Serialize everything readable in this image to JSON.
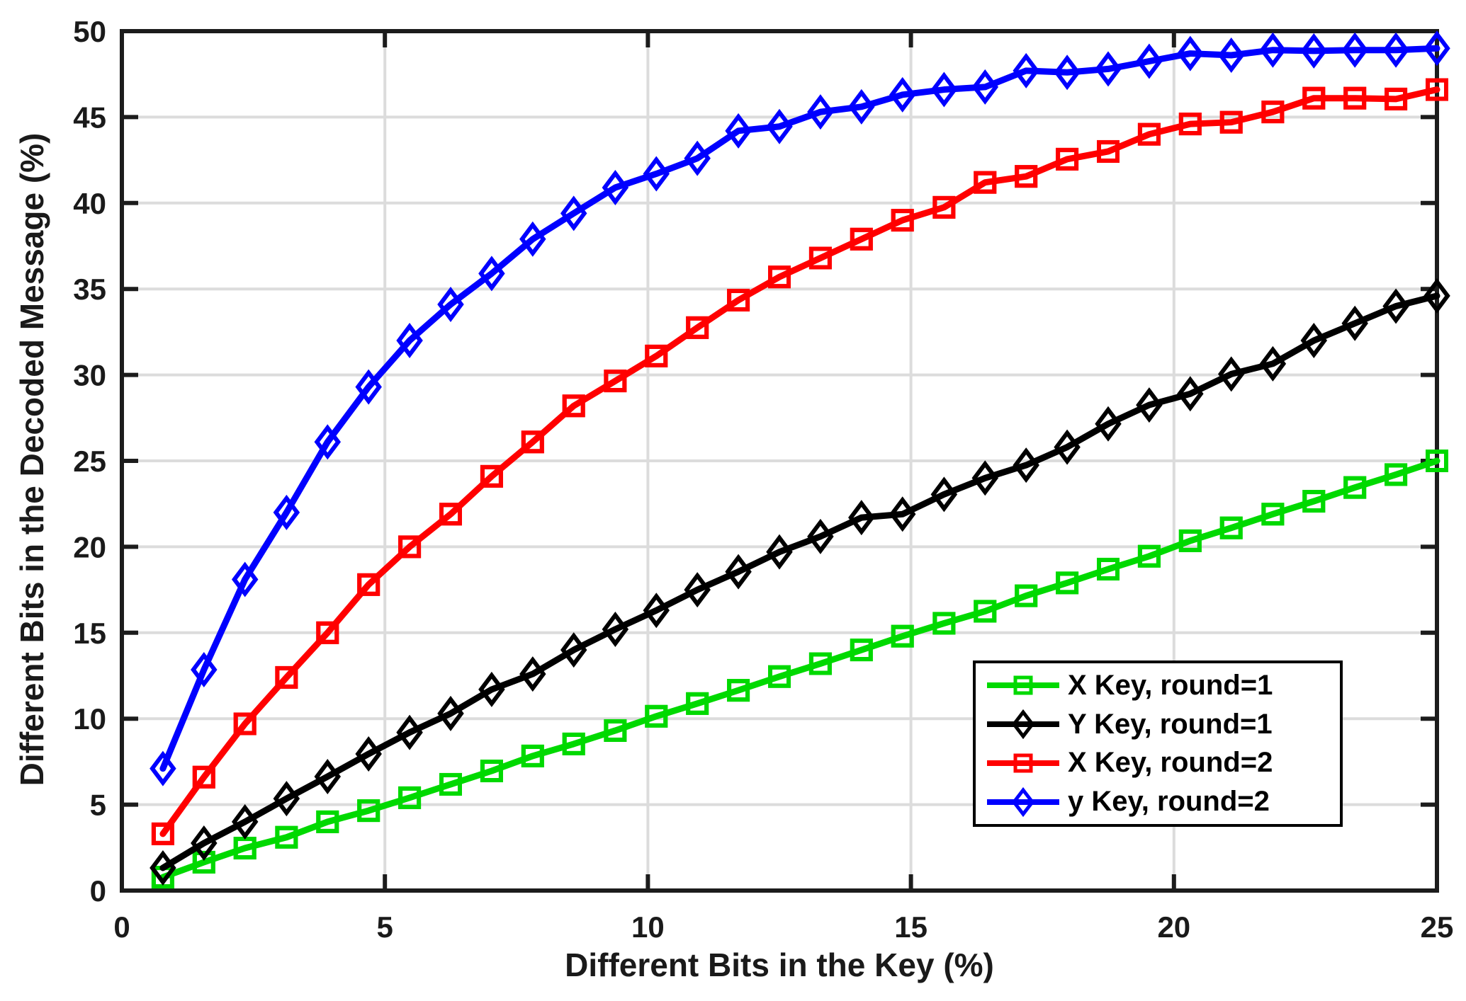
{
  "figure": {
    "background": "#ffffff",
    "grid_color": "#dcdcdc",
    "axis_color": "#1c1c1c",
    "tick_label_color": "#1a1a1a"
  },
  "chart_data": {
    "type": "line",
    "title": "",
    "xlabel": "Different Bits in the Key (%)",
    "ylabel": "Different Bits in the Decoded Message (%)",
    "xlim": [
      0,
      25
    ],
    "ylim": [
      0,
      50
    ],
    "xticks": [
      0,
      5,
      10,
      15,
      20,
      25
    ],
    "yticks": [
      0,
      5,
      10,
      15,
      20,
      25,
      30,
      35,
      40,
      45,
      50
    ],
    "grid": true,
    "legend_position": "inside-lower-right",
    "x": [
      0.78,
      1.56,
      2.34,
      3.13,
      3.91,
      4.69,
      5.47,
      6.25,
      7.03,
      7.81,
      8.59,
      9.38,
      10.16,
      10.94,
      11.72,
      12.5,
      13.28,
      14.06,
      14.84,
      15.63,
      16.41,
      17.19,
      17.97,
      18.75,
      19.53,
      20.31,
      21.09,
      21.88,
      22.66,
      23.44,
      24.22,
      25.0
    ],
    "series": [
      {
        "name": "X Key, round=1",
        "color": "#00d900",
        "marker": "square",
        "values": [
          0.78,
          1.65,
          2.47,
          3.1,
          4.0,
          4.65,
          5.4,
          6.18,
          6.96,
          7.83,
          8.53,
          9.31,
          10.14,
          10.88,
          11.65,
          12.45,
          13.2,
          14.0,
          14.8,
          15.55,
          16.25,
          17.15,
          17.9,
          18.7,
          19.45,
          20.35,
          21.1,
          21.9,
          22.65,
          23.45,
          24.2,
          25.0
        ]
      },
      {
        "name": "Y Key, round=1",
        "color": "#000000",
        "marker": "diamond",
        "values": [
          1.32,
          2.76,
          4.0,
          5.35,
          6.63,
          7.95,
          9.2,
          10.3,
          11.7,
          12.6,
          14.0,
          15.2,
          16.3,
          17.5,
          18.55,
          19.7,
          20.6,
          21.7,
          21.9,
          23.05,
          24.0,
          24.75,
          25.8,
          27.15,
          28.25,
          28.9,
          30.05,
          30.65,
          32.0,
          33.0,
          34.0,
          34.6
        ]
      },
      {
        "name": "X Key, round=2",
        "color": "#ff0000",
        "marker": "square",
        "values": [
          3.3,
          6.6,
          9.7,
          12.4,
          15.0,
          17.8,
          20.0,
          21.9,
          24.1,
          26.1,
          28.2,
          29.65,
          31.1,
          32.75,
          34.35,
          35.7,
          36.8,
          37.9,
          39.0,
          39.75,
          41.2,
          41.55,
          42.55,
          43.0,
          44.0,
          44.6,
          44.7,
          45.3,
          46.1,
          46.1,
          46.05,
          46.6
        ]
      },
      {
        "name": "y Key, round=2",
        "color": "#0000ff",
        "marker": "diamond",
        "values": [
          7.1,
          12.85,
          18.1,
          22.0,
          26.1,
          29.3,
          32.0,
          34.1,
          35.9,
          37.9,
          39.4,
          40.9,
          41.7,
          42.6,
          44.2,
          44.45,
          45.3,
          45.6,
          46.3,
          46.6,
          46.75,
          47.7,
          47.6,
          47.8,
          48.25,
          48.7,
          48.6,
          48.9,
          48.85,
          48.9,
          48.9,
          49.0
        ]
      }
    ]
  }
}
